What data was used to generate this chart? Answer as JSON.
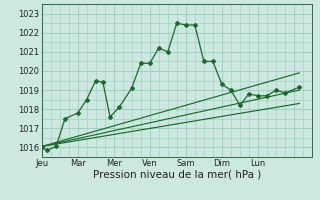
{
  "background_color": "#cce8e0",
  "grid_color": "#99ccbb",
  "line_color": "#1a6b2a",
  "xlabel": "Pression niveau de la mer( hPa )",
  "ylim": [
    1015.5,
    1023.2
  ],
  "yticks": [
    1016,
    1017,
    1018,
    1019,
    1020,
    1021,
    1022,
    1023
  ],
  "xlim": [
    0,
    14.5
  ],
  "series1": {
    "x": [
      0.0,
      0.3,
      0.8,
      1.3,
      2.0,
      2.5,
      3.0,
      3.4,
      3.8,
      4.3,
      5.0,
      5.5,
      6.0,
      6.5,
      7.0,
      7.5,
      8.0,
      8.5,
      9.0,
      9.5,
      10.0,
      10.5,
      11.0,
      11.5,
      12.0,
      12.5,
      13.0,
      13.5,
      14.3
    ],
    "y": [
      1016.0,
      1015.85,
      1016.05,
      1017.5,
      1017.8,
      1018.5,
      1019.5,
      1019.4,
      1017.6,
      1018.1,
      1019.1,
      1020.4,
      1020.4,
      1021.2,
      1021.0,
      1022.5,
      1022.4,
      1022.4,
      1020.5,
      1020.5,
      1019.3,
      1019.0,
      1018.2,
      1018.8,
      1018.7,
      1018.7,
      1019.0,
      1018.85,
      1019.15
    ]
  },
  "series_linear1": {
    "x": [
      0.0,
      14.3
    ],
    "y": [
      1016.05,
      1019.9
    ]
  },
  "series_linear2": {
    "x": [
      0.0,
      14.3
    ],
    "y": [
      1016.05,
      1019.0
    ]
  },
  "series_linear3": {
    "x": [
      0.0,
      14.3
    ],
    "y": [
      1016.05,
      1018.3
    ]
  },
  "day_pos": [
    0.0,
    2.0,
    4.0,
    6.0,
    8.0,
    10.0,
    12.0,
    14.0
  ],
  "day_labels": [
    "Jeu",
    "Mar",
    "Mer",
    "Ven",
    "Sam",
    "Dim",
    "Lun",
    ""
  ],
  "tick_fontsize": 6.0,
  "xlabel_fontsize": 7.5
}
